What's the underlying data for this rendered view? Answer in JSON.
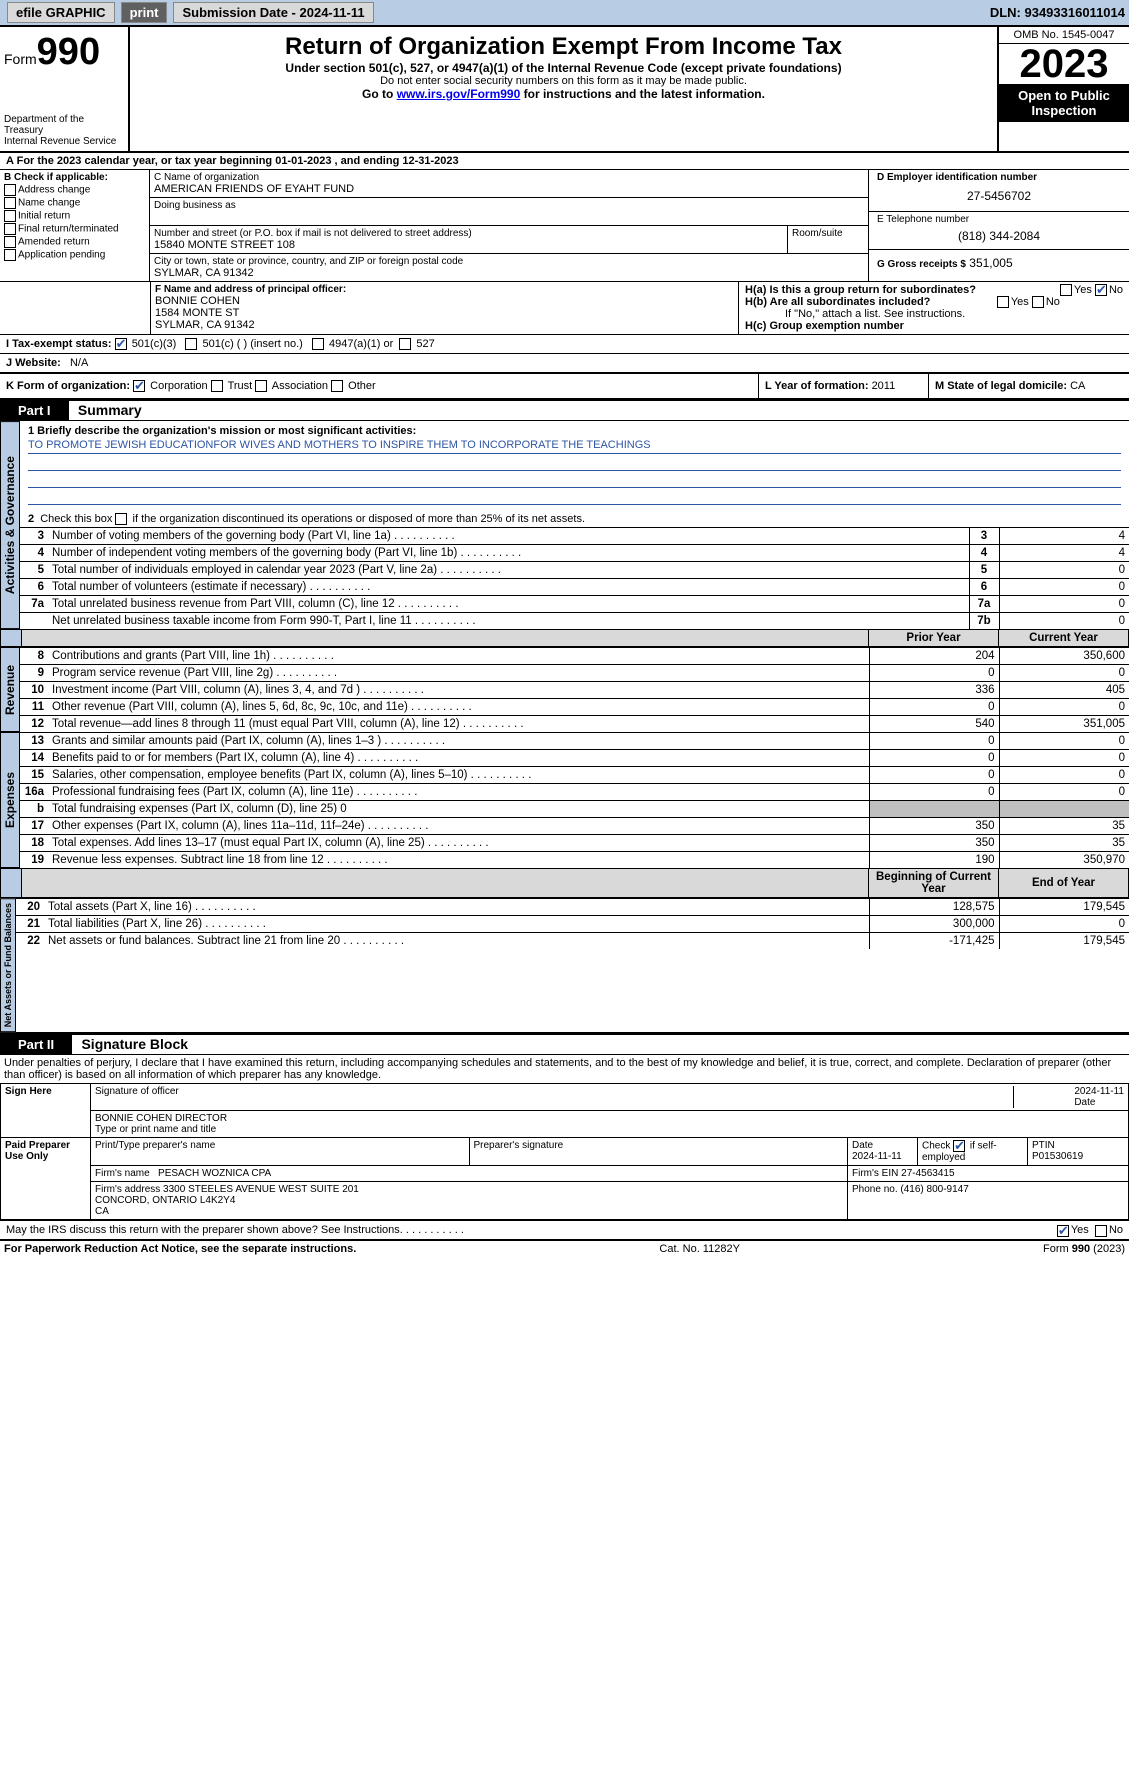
{
  "topbar": {
    "efile": "efile GRAPHIC",
    "print": "print",
    "submission_label": "Submission Date - ",
    "submission_date": "2024-11-11",
    "dln": "DLN: 93493316011014"
  },
  "header": {
    "form_word": "Form",
    "form_num": "990",
    "dept": "Department of the Treasury",
    "irs": "Internal Revenue Service",
    "title": "Return of Organization Exempt From Income Tax",
    "sub1": "Under section 501(c), 527, or 4947(a)(1) of the Internal Revenue Code (except private foundations)",
    "sub2": "Do not enter social security numbers on this form as it may be made public.",
    "sub3_pre": "Go to ",
    "sub3_link": "www.irs.gov/Form990",
    "sub3_post": " for instructions and the latest information.",
    "omb": "OMB No. 1545-0047",
    "year": "2023",
    "inspection": "Open to Public Inspection"
  },
  "line_a": "For the 2023 calendar year, or tax year beginning 01-01-2023   , and ending 12-31-2023",
  "block_b": {
    "title": "B Check if applicable:",
    "items": [
      "Address change",
      "Name change",
      "Initial return",
      "Final return/terminated",
      "Amended return",
      "Application pending"
    ]
  },
  "block_c": {
    "label": "C Name of organization",
    "name": "AMERICAN FRIENDS OF EYAHT FUND",
    "dba_label": "Doing business as",
    "street_label": "Number and street (or P.O. box if mail is not delivered to street address)",
    "room_label": "Room/suite",
    "street": "15840 MONTE STREET 108",
    "city_label": "City or town, state or province, country, and ZIP or foreign postal code",
    "city": "SYLMAR, CA  91342"
  },
  "block_d": {
    "label": "D Employer identification number",
    "value": "27-5456702"
  },
  "block_e": {
    "label": "E Telephone number",
    "value": "(818) 344-2084"
  },
  "block_g": {
    "label": "G Gross receipts $",
    "value": "351,005"
  },
  "block_f": {
    "label": "F  Name and address of principal officer:",
    "name": "BONNIE COHEN",
    "street": "1584 MONTE ST",
    "city": "SYLMAR, CA  91342"
  },
  "block_h": {
    "a": "H(a)  Is this a group return for subordinates?",
    "b": "H(b)  Are all subordinates included?",
    "b_note": "If \"No,\" attach a list. See instructions.",
    "c": "H(c)  Group exemption number",
    "yes": "Yes",
    "no": "No"
  },
  "tax_exempt": {
    "label": "I    Tax-exempt status:",
    "c3": "501(c)(3)",
    "c": "501(c) (  ) (insert no.)",
    "a1": "4947(a)(1) or",
    "s527": "527"
  },
  "website": {
    "label": "J    Website:",
    "value": "N/A"
  },
  "line_k": {
    "label": "K Form of organization:",
    "corp": "Corporation",
    "trust": "Trust",
    "assoc": "Association",
    "other": "Other"
  },
  "line_l": {
    "label": "L Year of formation: ",
    "value": "2011"
  },
  "line_m": {
    "label": "M State of legal domicile: ",
    "value": "CA"
  },
  "part1": {
    "header": "Part I",
    "title": "Summary",
    "q1_label": "1  Briefly describe the organization's mission or most significant activities:",
    "q1_text": "TO PROMOTE JEWISH EDUCATIONFOR WIVES AND MOTHERS TO INSPIRE THEM TO INCORPORATE THE TEACHINGS",
    "q2": "2   Check this box      if the organization discontinued its operations or disposed of more than 25% of its net assets.",
    "rows_gov": [
      {
        "n": "3",
        "t": "Number of voting members of the governing body (Part VI, line 1a)",
        "box": "3",
        "v": "4"
      },
      {
        "n": "4",
        "t": "Number of independent voting members of the governing body (Part VI, line 1b)",
        "box": "4",
        "v": "4"
      },
      {
        "n": "5",
        "t": "Total number of individuals employed in calendar year 2023 (Part V, line 2a)",
        "box": "5",
        "v": "0"
      },
      {
        "n": "6",
        "t": "Total number of volunteers (estimate if necessary)",
        "box": "6",
        "v": "0"
      },
      {
        "n": "7a",
        "t": "Total unrelated business revenue from Part VIII, column (C), line 12",
        "box": "7a",
        "v": "0"
      },
      {
        "n": "",
        "t": "Net unrelated business taxable income from Form 990-T, Part I, line 11",
        "box": "7b",
        "v": "0"
      }
    ],
    "col_prior": "Prior Year",
    "col_current": "Current Year",
    "col_boy": "Beginning of Current Year",
    "col_eoy": "End of Year",
    "revenue": [
      {
        "n": "8",
        "t": "Contributions and grants (Part VIII, line 1h)",
        "p": "204",
        "c": "350,600"
      },
      {
        "n": "9",
        "t": "Program service revenue (Part VIII, line 2g)",
        "p": "0",
        "c": "0"
      },
      {
        "n": "10",
        "t": "Investment income (Part VIII, column (A), lines 3, 4, and 7d )",
        "p": "336",
        "c": "405"
      },
      {
        "n": "11",
        "t": "Other revenue (Part VIII, column (A), lines 5, 6d, 8c, 9c, 10c, and 11e)",
        "p": "0",
        "c": "0"
      },
      {
        "n": "12",
        "t": "Total revenue—add lines 8 through 11 (must equal Part VIII, column (A), line 12)",
        "p": "540",
        "c": "351,005"
      }
    ],
    "expenses": [
      {
        "n": "13",
        "t": "Grants and similar amounts paid (Part IX, column (A), lines 1–3 )",
        "p": "0",
        "c": "0"
      },
      {
        "n": "14",
        "t": "Benefits paid to or for members (Part IX, column (A), line 4)",
        "p": "0",
        "c": "0"
      },
      {
        "n": "15",
        "t": "Salaries, other compensation, employee benefits (Part IX, column (A), lines 5–10)",
        "p": "0",
        "c": "0"
      },
      {
        "n": "16a",
        "t": "Professional fundraising fees (Part IX, column (A), line 11e)",
        "p": "0",
        "c": "0"
      },
      {
        "n": "b",
        "t": "Total fundraising expenses (Part IX, column (D), line 25) 0",
        "p": "",
        "c": "",
        "shaded": true
      },
      {
        "n": "17",
        "t": "Other expenses (Part IX, column (A), lines 11a–11d, 11f–24e)",
        "p": "350",
        "c": "35"
      },
      {
        "n": "18",
        "t": "Total expenses. Add lines 13–17 (must equal Part IX, column (A), line 25)",
        "p": "350",
        "c": "35"
      },
      {
        "n": "19",
        "t": "Revenue less expenses. Subtract line 18 from line 12",
        "p": "190",
        "c": "350,970"
      }
    ],
    "net": [
      {
        "n": "20",
        "t": "Total assets (Part X, line 16)",
        "p": "128,575",
        "c": "179,545"
      },
      {
        "n": "21",
        "t": "Total liabilities (Part X, line 26)",
        "p": "300,000",
        "c": "0"
      },
      {
        "n": "22",
        "t": "Net assets or fund balances. Subtract line 21 from line 20",
        "p": "-171,425",
        "c": "179,545"
      }
    ],
    "vtab_gov": "Activities & Governance",
    "vtab_rev": "Revenue",
    "vtab_exp": "Expenses",
    "vtab_net": "Net Assets or Fund Balances"
  },
  "part2": {
    "header": "Part II",
    "title": "Signature Block",
    "decl": "Under penalties of perjury, I declare that I have examined this return, including accompanying schedules and statements, and to the best of my knowledge and belief, it is true, correct, and complete. Declaration of preparer (other than officer) is based on all information of which preparer has any knowledge.",
    "sign_here": "Sign Here",
    "sig_officer": "Signature of officer",
    "sig_date": "2024-11-11",
    "date_label": "Date",
    "printed_name": "BONNIE COHEN  DIRECTOR",
    "printed_label": "Type or print name and title",
    "paid": "Paid Preparer Use Only",
    "prep_name_label": "Print/Type preparer's name",
    "prep_sig_label": "Preparer's signature",
    "prep_date": "Date\n2024-11-11",
    "self_emp": "Check       if self-employed",
    "ptin_label": "PTIN",
    "ptin": "P01530619",
    "firm_name_label": "Firm's name",
    "firm_name": "PESACH WOZNICA CPA",
    "firm_ein_label": "Firm's EIN",
    "firm_ein": "27-4563415",
    "firm_addr_label": "Firm's address",
    "firm_addr": "3300 STEELES AVENUE WEST SUITE 201\nCONCORD, ONTARIO  L4K2Y4\nCA",
    "firm_phone_label": "Phone no.",
    "firm_phone": "(416) 800-9147",
    "discuss": "May the IRS discuss this return with the preparer shown above? See Instructions.",
    "yes": "Yes",
    "no": "No"
  },
  "footer": {
    "left": "For Paperwork Reduction Act Notice, see the separate instructions.",
    "mid": "Cat. No. 11282Y",
    "right": "Form 990 (2023)"
  },
  "colors": {
    "topbar_bg": "#b8cce4",
    "inspection_bg": "#000000",
    "link": "#0000ee",
    "blue_text": "#2e55a5",
    "shaded": "#bfbfbf",
    "vtab_bg": "#b8cce4"
  }
}
